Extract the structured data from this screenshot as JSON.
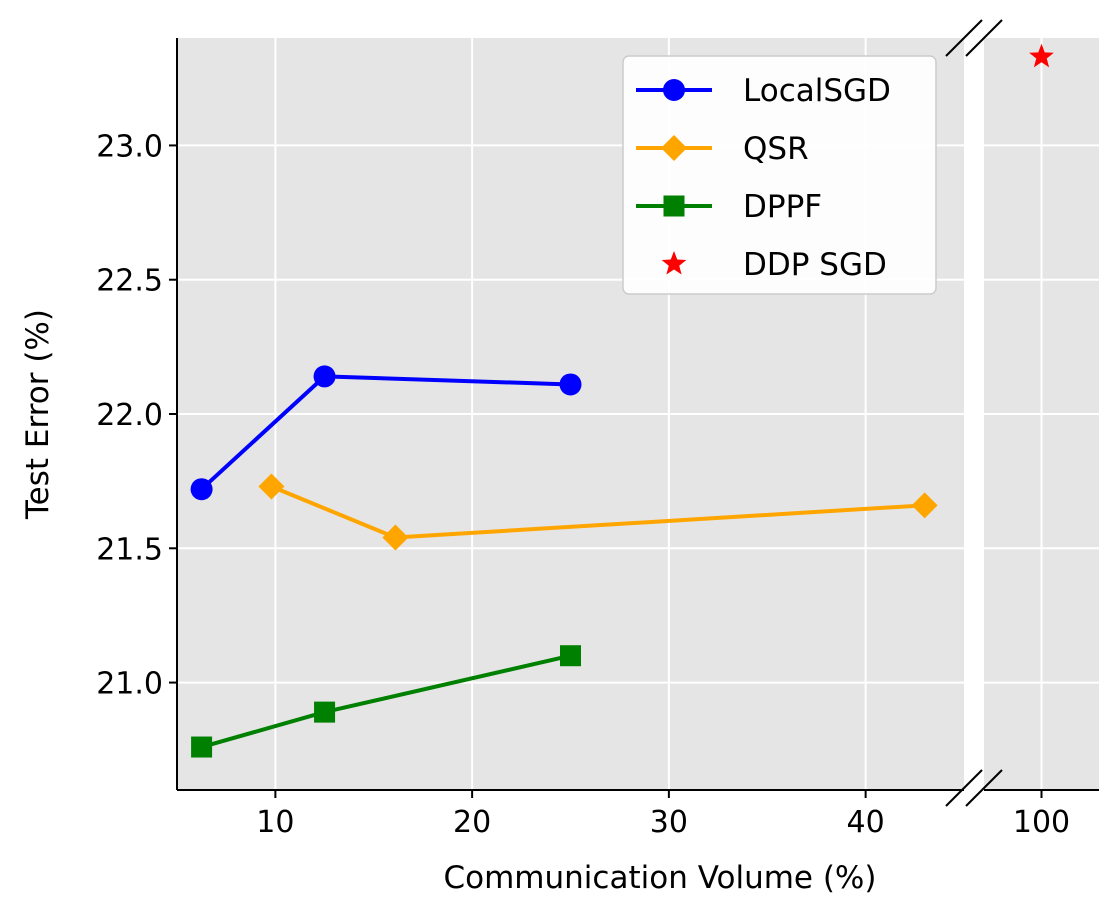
{
  "chart_data": {
    "type": "line",
    "title": "",
    "xlabel": "Communication Volume (%)",
    "ylabel": "Test Error (%)",
    "grid": true,
    "legend_position": "top-right",
    "x_axis": {
      "broken": true,
      "left_segment": {
        "range": [
          5,
          45
        ],
        "ticks": [
          10,
          20,
          30,
          40
        ]
      },
      "right_segment": {
        "range": [
          97,
          103
        ],
        "ticks": [
          100
        ]
      }
    },
    "ylim": [
      20.6,
      23.4
    ],
    "y_ticks": [
      "21.0",
      "21.5",
      "22.0",
      "22.5",
      "23.0"
    ],
    "series": [
      {
        "name": "LocalSGD",
        "color": "#0000ff",
        "marker": "circle",
        "line": true,
        "x": [
          6.25,
          12.5,
          25
        ],
        "y": [
          21.72,
          22.14,
          22.11
        ]
      },
      {
        "name": "QSR",
        "color": "#ffa500",
        "marker": "diamond",
        "line": true,
        "x": [
          9.8,
          16.1,
          43
        ],
        "y": [
          21.73,
          21.54,
          21.66
        ]
      },
      {
        "name": "DPPF",
        "color": "#008000",
        "marker": "square",
        "line": true,
        "x": [
          6.25,
          12.5,
          25
        ],
        "y": [
          20.76,
          20.89,
          21.1
        ]
      },
      {
        "name": "DDP SGD",
        "color": "#ff0000",
        "marker": "star",
        "line": false,
        "x": [
          100
        ],
        "y": [
          23.33
        ]
      }
    ]
  }
}
